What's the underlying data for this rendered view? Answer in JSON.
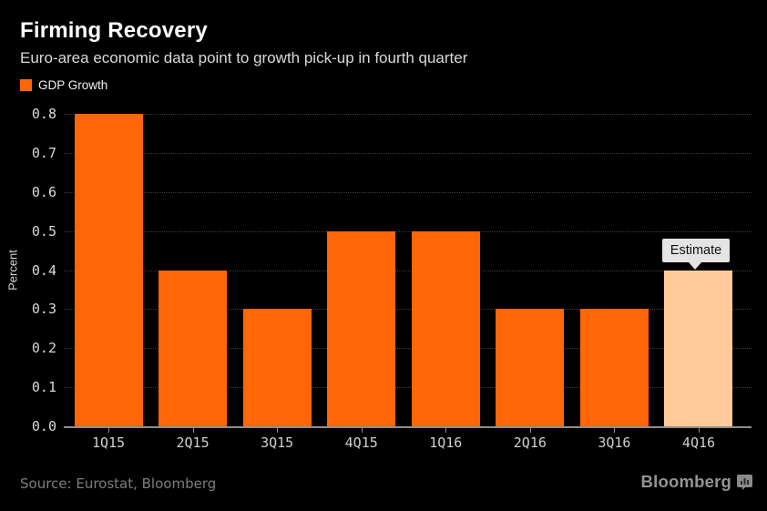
{
  "header": {
    "title": "Firming Recovery",
    "subtitle": "Euro-area economic data point to growth pick-up in fourth quarter"
  },
  "legend": {
    "label": "GDP Growth",
    "swatch_color": "#ff6606"
  },
  "chart_data": {
    "type": "bar",
    "title": "Firming Recovery",
    "subtitle": "Euro-area economic data point to growth pick-up in fourth quarter",
    "categories": [
      "1Q15",
      "2Q15",
      "3Q15",
      "4Q15",
      "1Q16",
      "2Q16",
      "3Q16",
      "4Q16"
    ],
    "series": [
      {
        "name": "GDP Growth",
        "values": [
          0.8,
          0.4,
          0.3,
          0.5,
          0.5,
          0.3,
          0.3,
          0.4
        ]
      }
    ],
    "xlabel": "",
    "ylabel": "Percent",
    "ylim": [
      0.0,
      0.8
    ],
    "ytick_step": 0.1,
    "yticks": [
      "0.0",
      "0.1",
      "0.2",
      "0.3",
      "0.4",
      "0.5",
      "0.6",
      "0.7",
      "0.8"
    ],
    "grid": "horizontal-dotted",
    "legend_position": "top-left",
    "estimate_index": 7,
    "annotations": [
      {
        "text": "Estimate",
        "target": "4Q16",
        "value": 0.4
      }
    ]
  },
  "annotation": {
    "estimate_label": "Estimate"
  },
  "footer": {
    "source": "Source: Eurostat, Bloomberg",
    "brand": "Bloomberg"
  },
  "colors": {
    "background": "#000000",
    "bar": "#ff6606",
    "estimate_bar": "#ffcc99",
    "gridline": "#3e3e3e",
    "axis_line": "#8f8f8f",
    "title_text": "#ffffff",
    "subtitle_text": "#d9d9d9",
    "tick_text": "#d9d9d9",
    "source_text": "#7e7e7e",
    "brand_text": "#949494",
    "callout_bg": "#e4e4e4",
    "callout_text": "#111111"
  }
}
